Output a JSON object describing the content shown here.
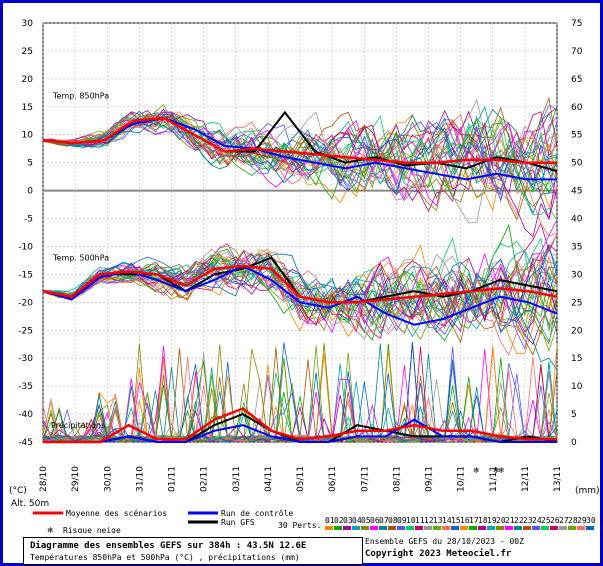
{
  "chart_data": {
    "type": "line",
    "left_axis": {
      "unit_label": "(°C)",
      "ticks": [
        30,
        25,
        20,
        15,
        10,
        5,
        0,
        -5,
        -10,
        -15,
        -20,
        -25,
        -30,
        -35,
        -40,
        -45
      ]
    },
    "right_axis": {
      "unit_label": "(mm)",
      "ticks": [
        75,
        70,
        65,
        60,
        55,
        50,
        45,
        40,
        35,
        30,
        25,
        20,
        15,
        10,
        5,
        0
      ]
    },
    "x_ticks": [
      "28/10",
      "29/10",
      "30/10",
      "31/10",
      "01/11",
      "02/11",
      "03/11",
      "04/11",
      "05/11",
      "06/11",
      "07/11",
      "08/11",
      "09/11",
      "10/11",
      "11/11",
      "12/11",
      "13/11"
    ],
    "altitude_label": "Alt. 50m",
    "panels": [
      {
        "label": "Temp. 850hPa"
      },
      {
        "label": "Temp. 500hPa"
      },
      {
        "label": "Précipitations"
      }
    ],
    "series": [
      {
        "name": "Moyenne des scénarios",
        "color": "#ff0000",
        "t850": [
          9,
          8.5,
          9,
          12.5,
          13,
          10,
          7,
          7.5,
          7,
          6.5,
          6,
          5.5,
          5,
          5,
          5.5,
          5.5,
          5,
          5
        ],
        "t500": [
          -18,
          -19,
          -15,
          -14.5,
          -15,
          -17,
          -14,
          -13.5,
          -14,
          -19,
          -20,
          -20,
          -19.5,
          -19,
          -18.5,
          -18,
          -17.5,
          -18,
          -19
        ],
        "precip": [
          0,
          0,
          0,
          3,
          0.5,
          0.5,
          4,
          6,
          2,
          0.5,
          1,
          2,
          2,
          3,
          2,
          2,
          1,
          0.5,
          0.5
        ]
      },
      {
        "name": "Run de contrôle",
        "color": "#0000ff",
        "t850": [
          9,
          8.5,
          9,
          12,
          13,
          11,
          8,
          7.5,
          6,
          5,
          4,
          5,
          4,
          3,
          2,
          3,
          2,
          2
        ],
        "t500": [
          -18,
          -19.5,
          -15.5,
          -14.5,
          -16,
          -18,
          -16,
          -13.5,
          -16,
          -20,
          -21,
          -19,
          -22,
          -24,
          -23,
          -21,
          -19,
          -20,
          -22
        ],
        "precip": [
          0,
          0,
          0,
          1,
          0,
          0,
          2,
          3,
          1,
          0,
          0,
          1,
          1,
          4,
          1,
          1,
          0,
          0,
          0
        ]
      },
      {
        "name": "Run GFS",
        "color": "#000000",
        "t850": [
          9,
          8.5,
          9,
          12,
          13,
          10,
          7,
          7,
          14,
          7,
          5,
          6,
          4.5,
          5,
          4,
          6,
          5,
          3.5
        ],
        "t500": [
          -18,
          -19,
          -15,
          -15,
          -15,
          -18,
          -15,
          -14,
          -12,
          -19,
          -20,
          -20,
          -19,
          -18,
          -19,
          -18,
          -16,
          -17,
          -18
        ],
        "precip": [
          0,
          0,
          0,
          1,
          0,
          0,
          3,
          5,
          2,
          0,
          0,
          3,
          2,
          1,
          1,
          1,
          0,
          1,
          0
        ]
      }
    ],
    "perturbations": {
      "label": "30 Perts.",
      "numbers": [
        "01",
        "02",
        "03",
        "04",
        "05",
        "06",
        "07",
        "08",
        "09",
        "10",
        "11",
        "12",
        "13",
        "14",
        "15",
        "16",
        "17",
        "18",
        "19",
        "20",
        "21",
        "22",
        "23",
        "24",
        "25",
        "26",
        "27",
        "28",
        "29",
        "30"
      ]
    },
    "legend": {
      "mean": "Moyenne des scénarios",
      "control": "Run de contrôle",
      "gfs": "Run GFS",
      "snow": "Risque neige"
    }
  },
  "info": {
    "title": "Diagramme des ensembles GEFS sur 384h : 43.5N 12.6E",
    "subtitle": "Températures 850hPa et 500hPa (°C) , précipitations (mm)"
  },
  "credits": {
    "ensemble": "Ensemble GEFS du 28/10/2023 - 00Z",
    "copyright": "Copyright 2023 Meteociel.fr"
  },
  "colors": {
    "frame": "#0000c8",
    "zero_line": "#888888",
    "grid": "#bbbbbb"
  }
}
